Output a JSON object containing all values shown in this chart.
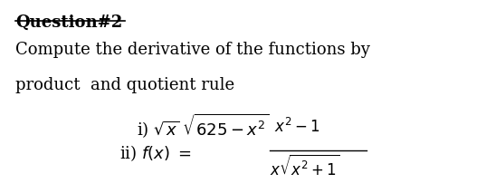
{
  "title": "Question#2",
  "line1": "Compute the derivative of the functions by",
  "line2": "product  and quotient rule",
  "bg_color": "#ffffff",
  "text_color": "#000000",
  "title_fontsize": 13,
  "body_fontsize": 13
}
